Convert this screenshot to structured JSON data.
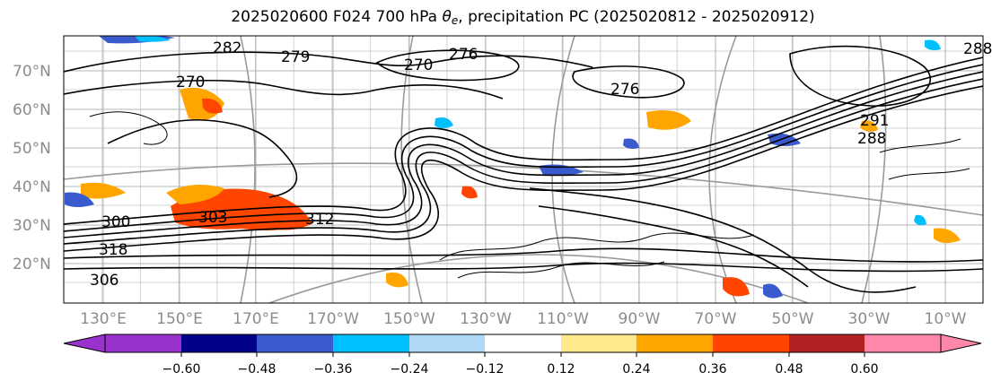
{
  "title": {
    "prefix": "2025020600 F024 700 hPa ",
    "theta": "θ",
    "theta_sub": "e",
    "suffix": ", precipitation PC (2025020812 - 2025020912)"
  },
  "map": {
    "lat_labels": [
      "70°N",
      "60°N",
      "50°N",
      "40°N",
      "30°N",
      "20°N"
    ],
    "lon_labels": [
      "130°E",
      "150°E",
      "170°E",
      "170°W",
      "150°W",
      "130°W",
      "110°W",
      "90°W",
      "70°W",
      "50°W",
      "30°W",
      "10°W"
    ],
    "contour_labels": [
      "282",
      "279",
      "276",
      "270",
      "270",
      "276",
      "303",
      "300",
      "318",
      "306",
      "312",
      "288",
      "291",
      "288"
    ]
  },
  "colorbar": {
    "colors": [
      "#9932cc",
      "#00008b",
      "#3a5bcd",
      "#00bfff",
      "#add8f6",
      "#ffffff",
      "#ffe98a",
      "#ffa500",
      "#ff4500",
      "#b22222",
      "#ff88aa"
    ],
    "tick_labels": [
      "−0.60",
      "−0.48",
      "−0.36",
      "−0.24",
      "−0.12",
      "0.12",
      "0.24",
      "0.36",
      "0.48",
      "0.60"
    ]
  }
}
